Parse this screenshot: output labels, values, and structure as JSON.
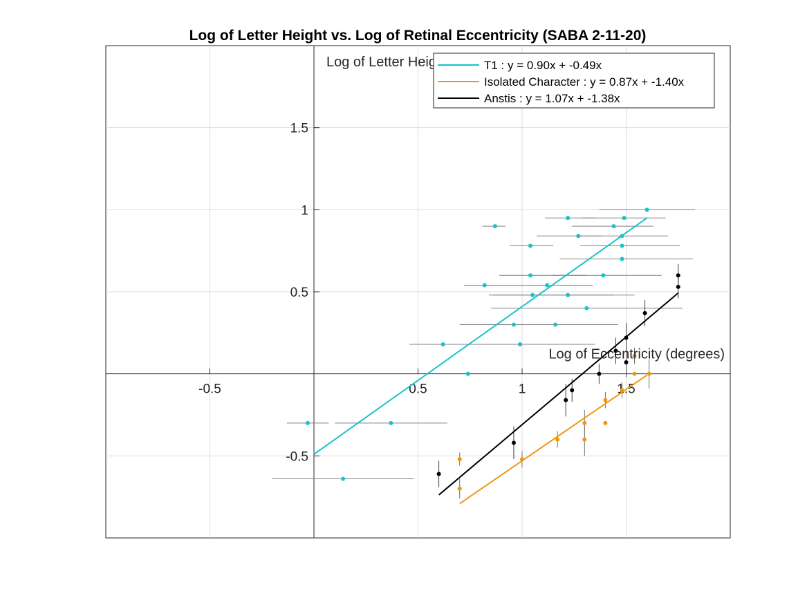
{
  "chart_data": {
    "type": "scatter",
    "title": "Log of Letter Height vs. Log of Retinal Eccentricity (SABA 2-11-20)",
    "xlabel": "Log of Eccentricity (degrees)",
    "ylabel": "Log of Letter Height",
    "xlim": [
      -1,
      2
    ],
    "ylim": [
      -1,
      2
    ],
    "xticks": [
      -0.5,
      0.5,
      1,
      1.5
    ],
    "xtick_labels": [
      "-0.5",
      "0.5",
      "1",
      "1.5"
    ],
    "yticks": [
      -0.5,
      0.5,
      1,
      1.5
    ],
    "ytick_labels": [
      "-0.5",
      "0.5",
      "1",
      "1.5"
    ],
    "grid": true,
    "axes_location": "origin",
    "legend_position": "top-right",
    "series": [
      {
        "name": "T1",
        "color": "#17c3c8",
        "fit": {
          "slope": 0.9,
          "intercept": -0.49,
          "x_range": [
            0,
            1.6
          ]
        },
        "legend_label": "T1 : y = 0.90x + -0.49x",
        "errorbar": "horizontal",
        "points": [
          {
            "x": 1.6,
            "y": 1.0,
            "xerr": [
              0.23,
              0.23
            ]
          },
          {
            "x": 1.49,
            "y": 0.95,
            "xerr": [
              0.2,
              0.2
            ]
          },
          {
            "x": 1.22,
            "y": 0.95,
            "xerr": [
              0.11,
              0.13
            ]
          },
          {
            "x": 0.87,
            "y": 0.9,
            "xerr": [
              0.06,
              0.05
            ]
          },
          {
            "x": 1.44,
            "y": 0.9,
            "xerr": [
              0.2,
              0.19
            ]
          },
          {
            "x": 1.27,
            "y": 0.84,
            "xerr": [
              0.2,
              0.11
            ]
          },
          {
            "x": 1.48,
            "y": 0.84,
            "xerr": [
              0.2,
              0.22
            ]
          },
          {
            "x": 1.04,
            "y": 0.78,
            "xerr": [
              0.1,
              0.11
            ]
          },
          {
            "x": 1.48,
            "y": 0.78,
            "xerr": [
              0.2,
              0.28
            ]
          },
          {
            "x": 1.48,
            "y": 0.7,
            "xerr": [
              0.3,
              0.34
            ]
          },
          {
            "x": 1.04,
            "y": 0.6,
            "xerr": [
              0.15,
              0.27
            ]
          },
          {
            "x": 1.39,
            "y": 0.6,
            "xerr": [
              0.25,
              0.28
            ]
          },
          {
            "x": 0.82,
            "y": 0.54,
            "xerr": [
              0.1,
              0.15
            ]
          },
          {
            "x": 1.12,
            "y": 0.54,
            "xerr": [
              0.2,
              0.22
            ]
          },
          {
            "x": 1.05,
            "y": 0.48,
            "xerr": [
              0.21,
              0.49
            ]
          },
          {
            "x": 1.22,
            "y": 0.48,
            "xerr": [
              0.36,
              0.22
            ]
          },
          {
            "x": 1.31,
            "y": 0.4,
            "xerr": [
              0.46,
              0.46
            ]
          },
          {
            "x": 0.96,
            "y": 0.3,
            "xerr": [
              0.26,
              0.3
            ]
          },
          {
            "x": 1.16,
            "y": 0.3,
            "xerr": [
              0.36,
              0.3
            ]
          },
          {
            "x": 0.62,
            "y": 0.18,
            "xerr": [
              0.16,
              0.34
            ]
          },
          {
            "x": 0.99,
            "y": 0.18,
            "xerr": [
              0.31,
              0.36
            ]
          },
          {
            "x": 0.74,
            "y": 0.0,
            "xerr": [
              0.0,
              0.0
            ]
          },
          {
            "x": -0.03,
            "y": -0.3,
            "xerr": [
              0.1,
              0.1
            ]
          },
          {
            "x": 0.37,
            "y": -0.3,
            "xerr": [
              0.27,
              0.27
            ]
          },
          {
            "x": 0.14,
            "y": -0.64,
            "xerr": [
              0.34,
              0.34
            ]
          }
        ]
      },
      {
        "name": "Isolated Character",
        "color": "#f0960f",
        "fit": {
          "slope": 0.87,
          "intercept": -1.4,
          "x_range": [
            0.7,
            1.6
          ]
        },
        "legend_label": "Isolated Character : y = 0.87x + -1.40x",
        "errorbar": "vertical",
        "points": [
          {
            "x": 1.54,
            "y": 0.11,
            "yerr": [
              0.05,
              0.05
            ]
          },
          {
            "x": 1.54,
            "y": 0.0,
            "yerr": [
              0.0,
              0.0
            ]
          },
          {
            "x": 1.61,
            "y": 0.0,
            "yerr": [
              0.09,
              0.09
            ]
          },
          {
            "x": 1.48,
            "y": -0.1,
            "yerr": [
              0.05,
              0.05
            ]
          },
          {
            "x": 1.4,
            "y": -0.16,
            "yerr": [
              0.05,
              0.05
            ]
          },
          {
            "x": 1.3,
            "y": -0.3,
            "yerr": [
              0.08,
              0.08
            ]
          },
          {
            "x": 1.4,
            "y": -0.3,
            "yerr": [
              0.0,
              0.0
            ]
          },
          {
            "x": 1.17,
            "y": -0.4,
            "yerr": [
              0.05,
              0.05
            ]
          },
          {
            "x": 1.3,
            "y": -0.4,
            "yerr": [
              0.1,
              0.1
            ]
          },
          {
            "x": 1.0,
            "y": -0.52,
            "yerr": [
              0.05,
              0.05
            ]
          },
          {
            "x": 0.7,
            "y": -0.52,
            "yerr": [
              0.04,
              0.04
            ]
          },
          {
            "x": 0.7,
            "y": -0.7,
            "yerr": [
              0.06,
              0.06
            ]
          }
        ]
      },
      {
        "name": "Anstis",
        "color": "#000000",
        "fit": {
          "slope": 1.07,
          "intercept": -1.38,
          "x_range": [
            0.6,
            1.75
          ]
        },
        "legend_label": "Anstis : y = 1.07x + -1.38x",
        "errorbar": "vertical",
        "points": [
          {
            "x": 1.75,
            "y": 0.6,
            "yerr": [
              0.07,
              0.07
            ]
          },
          {
            "x": 1.75,
            "y": 0.53,
            "yerr": [
              0.07,
              0.07
            ]
          },
          {
            "x": 1.59,
            "y": 0.37,
            "yerr": [
              0.08,
              0.08
            ]
          },
          {
            "x": 1.5,
            "y": 0.22,
            "yerr": [
              0.09,
              0.09
            ]
          },
          {
            "x": 1.45,
            "y": 0.14,
            "yerr": [
              0.08,
              0.08
            ]
          },
          {
            "x": 1.5,
            "y": 0.07,
            "yerr": [
              0.09,
              0.09
            ]
          },
          {
            "x": 1.37,
            "y": 0.0,
            "yerr": [
              0.06,
              0.06
            ]
          },
          {
            "x": 1.24,
            "y": -0.1,
            "yerr": [
              0.07,
              0.07
            ]
          },
          {
            "x": 1.21,
            "y": -0.16,
            "yerr": [
              0.1,
              0.1
            ]
          },
          {
            "x": 0.96,
            "y": -0.42,
            "yerr": [
              0.1,
              0.1
            ]
          },
          {
            "x": 0.6,
            "y": -0.61,
            "yerr": [
              0.08,
              0.08
            ]
          }
        ]
      }
    ]
  }
}
